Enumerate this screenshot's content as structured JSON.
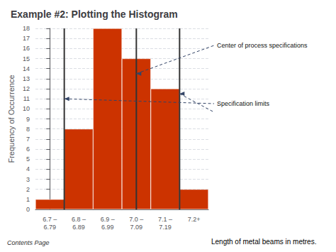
{
  "chart_data": {
    "type": "bar",
    "title": "Example #2: Plotting the Histogram",
    "categories": [
      "6.7 –\n6.79",
      "6.8 –\n6.89",
      "6.9 –\n6.99",
      "7.0 –\n7.09",
      "7.1 –\n7.19",
      "7.2+"
    ],
    "values": [
      1,
      8,
      18,
      15,
      12,
      2
    ],
    "color": "#cc3300",
    "ylim": [
      0,
      18
    ],
    "yticks": [
      0,
      1,
      2,
      3,
      4,
      5,
      6,
      7,
      8,
      9,
      10,
      11,
      12,
      13,
      14,
      15,
      16,
      17,
      18
    ],
    "grid": true,
    "xlabel": "Length of metal beams in metres.",
    "ylabel": "Frequency of Occurrence",
    "footnote": "Contents Page",
    "vlines": {
      "x": [
        0.5,
        4.5,
        3.0
      ],
      "color": "#333333"
    },
    "annotations": [
      {
        "text": "Center of process specifications",
        "points": [
          [
            3.0,
            13.5
          ]
        ]
      },
      {
        "text": "Specification limits",
        "points": [
          [
            0.5,
            11.0
          ],
          [
            4.5,
            11.5
          ]
        ]
      }
    ]
  }
}
